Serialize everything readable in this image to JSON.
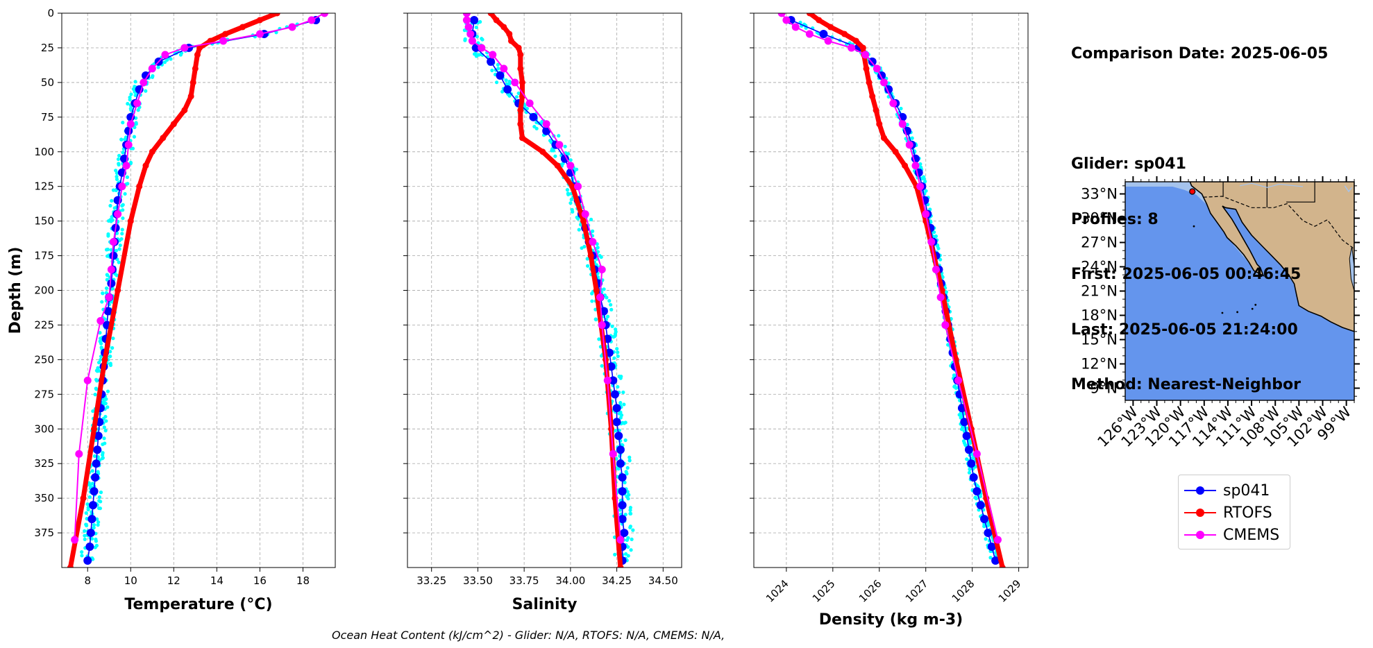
{
  "info": {
    "comparison_date": "Comparison Date: 2025-06-05",
    "glider": "Glider: sp041",
    "profiles": "Profiles: 8",
    "first": "First: 2025-06-05 00:46:45",
    "last": "Last: 2025-06-05 21:24:00",
    "method": "Method: Nearest-Neighbor"
  },
  "footer": "Ocean Heat Content (kJ/cm^2) - Glider: N/A,  RTOFS: N/A,  CMEMS: N/A,",
  "colors": {
    "glider": "#0000ff",
    "rtofs": "#ff0000",
    "cmems": "#ff00ff",
    "glider_raw": "#00ffff",
    "ocean": "#6495ed",
    "shelf": "#a5c3ec",
    "land": "#d2b48c"
  },
  "legend": [
    {
      "label": "sp041",
      "color": "#0000ff"
    },
    {
      "label": "RTOFS",
      "color": "#ff0000"
    },
    {
      "label": "CMEMS",
      "color": "#ff00ff"
    }
  ],
  "map": {
    "lat_labels": [
      "33°N",
      "30°N",
      "27°N",
      "24°N",
      "21°N",
      "18°N",
      "15°N",
      "12°N",
      "9°N"
    ],
    "lon_labels": [
      "126°W",
      "123°W",
      "120°W",
      "117°W",
      "114°W",
      "111°W",
      "108°W",
      "105°W",
      "102°W",
      "99°W"
    ],
    "lon_range": [
      -127,
      -98
    ],
    "lat_range": [
      7.5,
      34.5
    ],
    "glider_position": {
      "lon": -118.5,
      "lat": 33.3
    }
  },
  "chart_data": [
    {
      "type": "line",
      "xlabel": "Temperature (°C)",
      "ylabel": "Depth (m)",
      "xlim": [
        6.8,
        19.5
      ],
      "ylim": [
        400,
        0
      ],
      "xticks": [
        "8",
        "10",
        "12",
        "14",
        "16",
        "18"
      ],
      "yticks": [
        "0",
        "25",
        "50",
        "75",
        "100",
        "125",
        "150",
        "175",
        "200",
        "225",
        "250",
        "275",
        "300",
        "325",
        "350",
        "375"
      ],
      "grid": true,
      "series": [
        {
          "name": "sp041",
          "depth": [
            5,
            15,
            25,
            35,
            45,
            55,
            65,
            75,
            85,
            95,
            105,
            115,
            125,
            135,
            145,
            155,
            165,
            175,
            185,
            195,
            205,
            215,
            225,
            235,
            245,
            255,
            265,
            275,
            285,
            295,
            305,
            315,
            325,
            335,
            345,
            355,
            365,
            375,
            385,
            395
          ],
          "values": [
            18.6,
            16.2,
            12.7,
            11.3,
            10.7,
            10.4,
            10.2,
            10.0,
            9.9,
            9.8,
            9.7,
            9.6,
            9.5,
            9.4,
            9.35,
            9.3,
            9.25,
            9.2,
            9.15,
            9.1,
            9.0,
            8.95,
            8.9,
            8.85,
            8.8,
            8.75,
            8.7,
            8.65,
            8.6,
            8.55,
            8.5,
            8.45,
            8.4,
            8.35,
            8.3,
            8.25,
            8.2,
            8.15,
            8.1,
            8.0
          ]
        },
        {
          "name": "RTOFS",
          "depth": [
            0,
            5,
            10,
            15,
            20,
            25,
            30,
            40,
            50,
            60,
            70,
            80,
            90,
            100,
            110,
            125,
            150,
            200,
            250,
            300,
            350,
            400
          ],
          "values": [
            16.8,
            16.0,
            15.2,
            14.4,
            13.7,
            13.2,
            13.1,
            13.0,
            12.9,
            12.8,
            12.5,
            12.0,
            11.5,
            11.0,
            10.7,
            10.4,
            10.0,
            9.4,
            8.8,
            8.3,
            7.8,
            7.2
          ]
        },
        {
          "name": "CMEMS",
          "depth": [
            0,
            5,
            10,
            15,
            20,
            25,
            30,
            40,
            50,
            65,
            80,
            95,
            110,
            125,
            145,
            165,
            185,
            205,
            222,
            265,
            318,
            380
          ],
          "values": [
            19.0,
            18.4,
            17.5,
            16.0,
            14.3,
            12.5,
            11.6,
            11.0,
            10.6,
            10.3,
            10.0,
            9.9,
            9.8,
            9.6,
            9.4,
            9.2,
            9.1,
            9.0,
            8.6,
            8.0,
            7.6,
            7.4
          ]
        }
      ]
    },
    {
      "type": "line",
      "xlabel": "Salinity",
      "ylabel": "",
      "xlim": [
        33.12,
        34.6
      ],
      "ylim": [
        400,
        0
      ],
      "xticks": [
        "33.25",
        "33.50",
        "33.75",
        "34.00",
        "34.25",
        "34.50"
      ],
      "grid": true,
      "series": [
        {
          "name": "sp041",
          "depth": [
            5,
            15,
            25,
            35,
            45,
            55,
            65,
            75,
            85,
            95,
            105,
            115,
            125,
            135,
            145,
            155,
            165,
            175,
            185,
            195,
            205,
            215,
            225,
            235,
            245,
            255,
            265,
            275,
            285,
            295,
            305,
            315,
            325,
            335,
            345,
            355,
            365,
            375,
            385,
            395
          ],
          "values": [
            33.48,
            33.47,
            33.49,
            33.57,
            33.62,
            33.66,
            33.72,
            33.8,
            33.87,
            33.92,
            33.97,
            34.0,
            34.02,
            34.04,
            34.06,
            34.08,
            34.1,
            34.12,
            34.13,
            34.15,
            34.16,
            34.18,
            34.19,
            34.2,
            34.21,
            34.22,
            34.23,
            34.24,
            34.25,
            34.25,
            34.26,
            34.27,
            34.27,
            34.28,
            34.28,
            34.28,
            34.28,
            34.29,
            34.28,
            34.28
          ]
        },
        {
          "name": "RTOFS",
          "depth": [
            0,
            5,
            10,
            15,
            20,
            25,
            30,
            40,
            50,
            60,
            70,
            80,
            90,
            100,
            110,
            125,
            150,
            175,
            200,
            250,
            300,
            350,
            400
          ],
          "values": [
            33.57,
            33.6,
            33.64,
            33.67,
            33.68,
            33.72,
            33.73,
            33.73,
            33.74,
            33.74,
            33.73,
            33.73,
            33.74,
            33.85,
            33.93,
            34.01,
            34.07,
            34.11,
            34.14,
            34.19,
            34.22,
            34.24,
            34.27
          ]
        },
        {
          "name": "CMEMS",
          "depth": [
            0,
            5,
            10,
            15,
            20,
            25,
            30,
            40,
            50,
            65,
            80,
            95,
            110,
            125,
            145,
            165,
            185,
            205,
            225,
            265,
            318,
            380
          ],
          "values": [
            33.44,
            33.44,
            33.45,
            33.46,
            33.47,
            33.52,
            33.58,
            33.64,
            33.7,
            33.78,
            33.87,
            33.94,
            34.0,
            34.04,
            34.08,
            34.12,
            34.17,
            34.16,
            34.17,
            34.2,
            34.23,
            34.27
          ]
        }
      ]
    },
    {
      "type": "line",
      "xlabel": "Density (kg m-3)",
      "ylabel": "",
      "xlim": [
        1023.3,
        1029.2
      ],
      "ylim": [
        400,
        0
      ],
      "xticks": [
        "1024",
        "1025",
        "1026",
        "1027",
        "1028",
        "1029"
      ],
      "grid": true,
      "series": [
        {
          "name": "sp041",
          "depth": [
            5,
            15,
            25,
            35,
            45,
            55,
            65,
            75,
            85,
            95,
            105,
            115,
            125,
            135,
            145,
            155,
            165,
            175,
            185,
            195,
            205,
            215,
            225,
            235,
            245,
            255,
            265,
            275,
            285,
            295,
            305,
            315,
            325,
            335,
            345,
            355,
            365,
            375,
            385,
            395
          ],
          "values": [
            1024.1,
            1024.8,
            1025.55,
            1025.85,
            1026.05,
            1026.2,
            1026.35,
            1026.5,
            1026.6,
            1026.7,
            1026.78,
            1026.85,
            1026.92,
            1026.98,
            1027.04,
            1027.1,
            1027.16,
            1027.22,
            1027.28,
            1027.33,
            1027.38,
            1027.43,
            1027.48,
            1027.53,
            1027.58,
            1027.63,
            1027.68,
            1027.73,
            1027.78,
            1027.83,
            1027.88,
            1027.93,
            1027.98,
            1028.03,
            1028.1,
            1028.18,
            1028.26,
            1028.34,
            1028.42,
            1028.5
          ]
        },
        {
          "name": "RTOFS",
          "depth": [
            0,
            5,
            10,
            15,
            20,
            25,
            30,
            40,
            50,
            60,
            70,
            80,
            90,
            100,
            110,
            125,
            150,
            200,
            250,
            300,
            350,
            400
          ],
          "values": [
            1024.5,
            1024.7,
            1024.95,
            1025.25,
            1025.5,
            1025.65,
            1025.67,
            1025.72,
            1025.78,
            1025.85,
            1025.93,
            1026.0,
            1026.1,
            1026.35,
            1026.55,
            1026.8,
            1027.0,
            1027.35,
            1027.65,
            1027.98,
            1028.3,
            1028.65
          ]
        },
        {
          "name": "CMEMS",
          "depth": [
            0,
            5,
            10,
            15,
            20,
            25,
            30,
            40,
            50,
            65,
            80,
            95,
            110,
            125,
            145,
            165,
            185,
            205,
            225,
            265,
            318,
            380
          ],
          "values": [
            1023.9,
            1024.0,
            1024.2,
            1024.5,
            1024.9,
            1025.4,
            1025.7,
            1025.95,
            1026.1,
            1026.3,
            1026.5,
            1026.65,
            1026.78,
            1026.88,
            1027.0,
            1027.12,
            1027.22,
            1027.32,
            1027.42,
            1027.7,
            1028.1,
            1028.55
          ]
        }
      ]
    }
  ]
}
